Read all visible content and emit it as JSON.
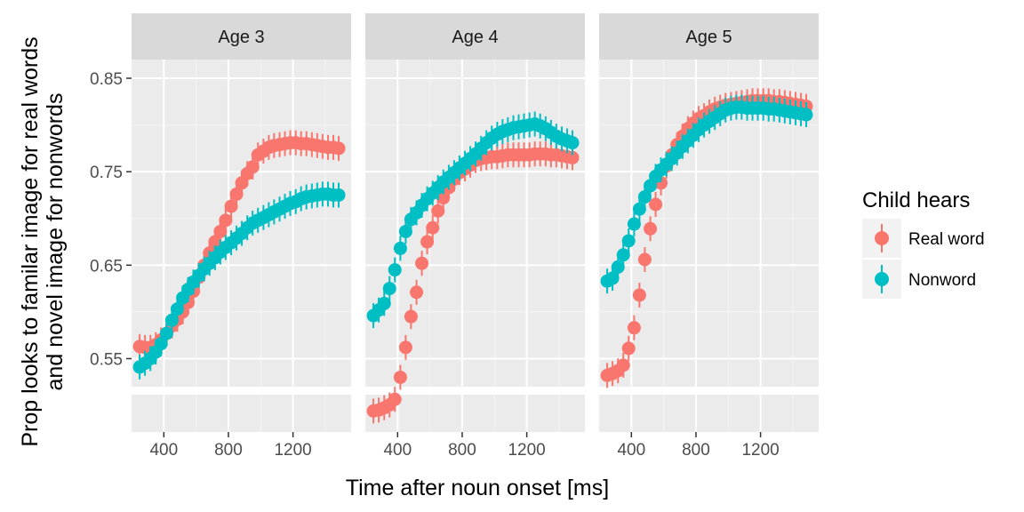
{
  "chart_data": {
    "type": "scatter",
    "facets": [
      {
        "label": "Age 3"
      },
      {
        "label": "Age 4"
      },
      {
        "label": "Age 5"
      }
    ],
    "xlabel": "Time after noun onset [ms]",
    "ylabel_line1": "Prop looks to familar image for real words",
    "ylabel_line2": "and novel image for nonwords",
    "x_ticks": [
      400,
      800,
      1200
    ],
    "x_tick_labels": [
      "400",
      "800",
      "1200"
    ],
    "xlim": [
      200,
      1560
    ],
    "y_ticks": [
      0.55,
      0.65,
      0.75,
      0.85
    ],
    "y_tick_labels": [
      "0.55",
      "0.65",
      "0.75",
      "0.85"
    ],
    "ylim": [
      0.52,
      0.87
    ],
    "lower_panel_ylim": [
      0.44,
      0.52
    ],
    "grid": true,
    "legend": {
      "title": "Child hears",
      "position": "right",
      "entries": [
        {
          "label": "Real word",
          "color": "#F8766D"
        },
        {
          "label": "Nonword",
          "color": "#00BFC4"
        }
      ]
    },
    "series": [
      {
        "name": "Real word",
        "color": "#F8766D",
        "panels": [
          {
            "x": [
              250,
              283,
              317,
              350,
              383,
              417,
              450,
              483,
              517,
              550,
              583,
              617,
              650,
              683,
              717,
              750,
              783,
              817,
              850,
              883,
              917,
              950,
              983,
              1017,
              1050,
              1083,
              1117,
              1150,
              1183,
              1217,
              1250,
              1283,
              1317,
              1350,
              1383,
              1417,
              1450,
              1483
            ],
            "y": [
              0.563,
              0.562,
              0.562,
              0.565,
              0.57,
              0.577,
              0.585,
              0.592,
              0.6,
              0.61,
              0.622,
              0.637,
              0.65,
              0.663,
              0.675,
              0.686,
              0.698,
              0.713,
              0.726,
              0.738,
              0.748,
              0.755,
              0.768,
              0.772,
              0.776,
              0.778,
              0.779,
              0.78,
              0.781,
              0.781,
              0.78,
              0.78,
              0.779,
              0.778,
              0.777,
              0.776,
              0.776,
              0.775
            ]
          },
          {
            "x": [
              250,
              283,
              317,
              350,
              383,
              417,
              450,
              483,
              517,
              550,
              583,
              617,
              650,
              683,
              717,
              750,
              783,
              817,
              850,
              883,
              917,
              950,
              983,
              1017,
              1050,
              1083,
              1117,
              1150,
              1183,
              1217,
              1250,
              1283,
              1317,
              1350,
              1383,
              1417,
              1450,
              1483
            ],
            "y": [
              0.485,
              0.487,
              0.492,
              0.498,
              0.51,
              0.53,
              0.562,
              0.595,
              0.621,
              0.652,
              0.675,
              0.69,
              0.708,
              0.722,
              0.733,
              0.742,
              0.749,
              0.753,
              0.757,
              0.762,
              0.764,
              0.765,
              0.766,
              0.766,
              0.767,
              0.768,
              0.768,
              0.768,
              0.768,
              0.768,
              0.769,
              0.769,
              0.769,
              0.768,
              0.768,
              0.767,
              0.766,
              0.765
            ]
          },
          {
            "x": [
              250,
              283,
              317,
              350,
              383,
              417,
              450,
              483,
              517,
              550,
              583,
              617,
              650,
              683,
              717,
              750,
              783,
              817,
              850,
              883,
              917,
              950,
              983,
              1017,
              1050,
              1083,
              1117,
              1150,
              1183,
              1217,
              1250,
              1283,
              1317,
              1350,
              1383,
              1417,
              1450,
              1483
            ],
            "y": [
              0.532,
              0.534,
              0.537,
              0.543,
              0.561,
              0.583,
              0.618,
              0.656,
              0.689,
              0.715,
              0.738,
              0.756,
              0.768,
              0.779,
              0.788,
              0.796,
              0.802,
              0.807,
              0.81,
              0.814,
              0.817,
              0.819,
              0.821,
              0.822,
              0.823,
              0.824,
              0.825,
              0.826,
              0.826,
              0.826,
              0.826,
              0.825,
              0.825,
              0.824,
              0.823,
              0.822,
              0.821,
              0.82
            ]
          }
        ]
      },
      {
        "name": "Nonword",
        "color": "#00BFC4",
        "panels": [
          {
            "x": [
              250,
              283,
              317,
              350,
              383,
              417,
              450,
              483,
              517,
              550,
              583,
              617,
              650,
              683,
              717,
              750,
              783,
              817,
              850,
              883,
              917,
              950,
              983,
              1017,
              1050,
              1083,
              1117,
              1150,
              1183,
              1217,
              1250,
              1283,
              1317,
              1350,
              1383,
              1417,
              1450,
              1483
            ],
            "y": [
              0.541,
              0.545,
              0.55,
              0.557,
              0.566,
              0.577,
              0.591,
              0.603,
              0.615,
              0.624,
              0.632,
              0.639,
              0.646,
              0.652,
              0.658,
              0.664,
              0.669,
              0.674,
              0.679,
              0.684,
              0.69,
              0.695,
              0.698,
              0.701,
              0.704,
              0.707,
              0.71,
              0.713,
              0.716,
              0.718,
              0.721,
              0.723,
              0.724,
              0.725,
              0.726,
              0.726,
              0.725,
              0.725
            ]
          },
          {
            "x": [
              250,
              283,
              317,
              350,
              383,
              417,
              450,
              483,
              517,
              550,
              583,
              617,
              650,
              683,
              717,
              750,
              783,
              817,
              850,
              883,
              917,
              950,
              983,
              1017,
              1050,
              1083,
              1117,
              1150,
              1183,
              1217,
              1250,
              1283,
              1317,
              1350,
              1383,
              1417,
              1450,
              1483
            ],
            "y": [
              0.596,
              0.602,
              0.609,
              0.625,
              0.645,
              0.668,
              0.686,
              0.699,
              0.706,
              0.714,
              0.721,
              0.727,
              0.733,
              0.739,
              0.744,
              0.749,
              0.754,
              0.759,
              0.764,
              0.769,
              0.775,
              0.781,
              0.786,
              0.79,
              0.793,
              0.795,
              0.797,
              0.798,
              0.799,
              0.8,
              0.801,
              0.799,
              0.796,
              0.792,
              0.788,
              0.785,
              0.783,
              0.781
            ]
          },
          {
            "x": [
              250,
              283,
              317,
              350,
              383,
              417,
              450,
              483,
              517,
              550,
              583,
              617,
              650,
              683,
              717,
              750,
              783,
              817,
              850,
              883,
              917,
              950,
              983,
              1017,
              1050,
              1083,
              1117,
              1150,
              1183,
              1217,
              1250,
              1283,
              1317,
              1350,
              1383,
              1417,
              1450,
              1483
            ],
            "y": [
              0.633,
              0.636,
              0.648,
              0.661,
              0.676,
              0.694,
              0.71,
              0.723,
              0.735,
              0.745,
              0.752,
              0.758,
              0.764,
              0.77,
              0.777,
              0.783,
              0.789,
              0.795,
              0.8,
              0.804,
              0.808,
              0.812,
              0.816,
              0.818,
              0.819,
              0.819,
              0.818,
              0.818,
              0.818,
              0.818,
              0.817,
              0.817,
              0.816,
              0.815,
              0.814,
              0.813,
              0.812,
              0.811
            ]
          }
        ]
      }
    ]
  }
}
